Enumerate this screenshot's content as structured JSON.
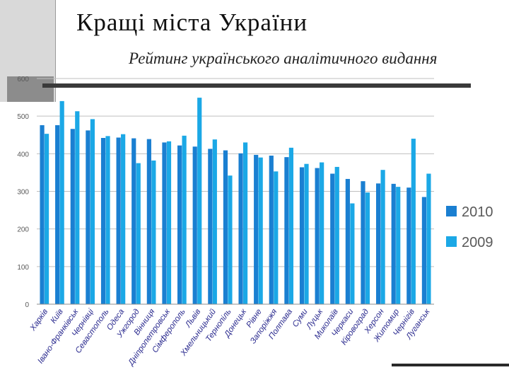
{
  "slide": {
    "title": "Кращі міста України",
    "subtitle": "Рейтинг українського аналітичного видання"
  },
  "colors": {
    "2010": "#1a7fd1",
    "2009": "#1ba8e6"
  },
  "chart_data": {
    "type": "bar",
    "title": "",
    "xlabel": "",
    "ylabel": "",
    "ylim": [
      0,
      600
    ],
    "yticks": [
      0,
      100,
      200,
      300,
      400,
      500,
      600
    ],
    "grid": true,
    "legend_position": "right",
    "categories": [
      "Харків",
      "Київ",
      "Івано-Франківськ",
      "Чернівці",
      "Севастополь",
      "Одеса",
      "Ужгород",
      "Вінниця",
      "Дніпропетровськ",
      "Сімферополь",
      "Львів",
      "Хмельницький",
      "Тернопіль",
      "Донецьк",
      "Рівне",
      "Запоріжжя",
      "Полтава",
      "Суми",
      "Луцьк",
      "Миколаїв",
      "Черкаси",
      "Кіровоград",
      "Херсон",
      "Житомир",
      "Чернігів",
      "Луганськ"
    ],
    "series": [
      {
        "name": "2010",
        "values": [
          476,
          476,
          466,
          462,
          442,
          443,
          441,
          439,
          430,
          422,
          419,
          413,
          409,
          401,
          397,
          395,
          391,
          364,
          362,
          347,
          333,
          327,
          321,
          320,
          310,
          285
        ]
      },
      {
        "name": "2009",
        "values": [
          453,
          540,
          513,
          492,
          447,
          452,
          375,
          382,
          433,
          448,
          549,
          438,
          342,
          430,
          390,
          353,
          416,
          373,
          377,
          365,
          268,
          297,
          357,
          312,
          440,
          347
        ]
      }
    ]
  }
}
